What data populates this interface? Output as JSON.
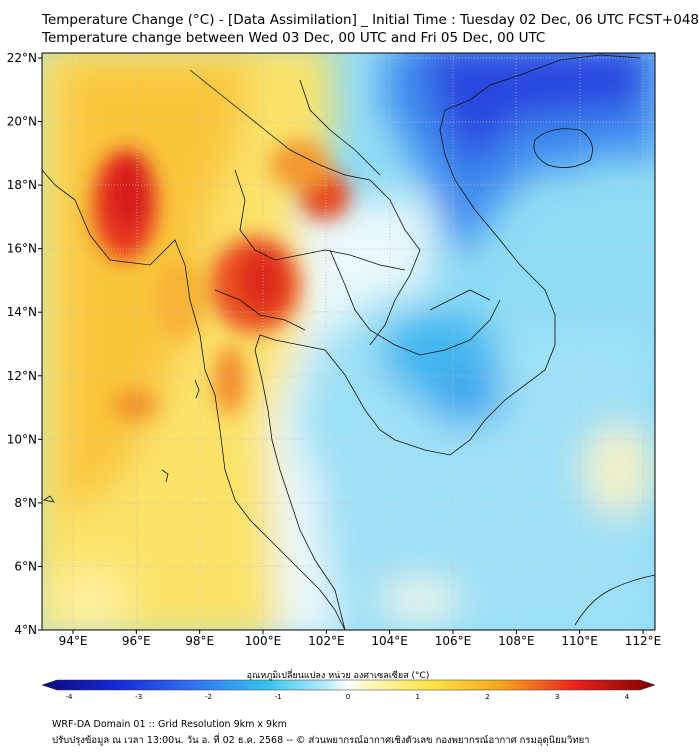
{
  "header": {
    "title_line1": "Temperature Change (°C) - [Data Assimilation] _ Initial Time : Tuesday 02 Dec, 06 UTC FCST+048",
    "title_line2": "Temperature change between Wed 03 Dec, 00 UTC and Fri 05 Dec, 00 UTC"
  },
  "map": {
    "lat_labels": [
      "22°N",
      "20°N",
      "18°N",
      "16°N",
      "14°N",
      "12°N",
      "10°N",
      "8°N",
      "6°N",
      "4°N"
    ],
    "lon_labels": [
      "94°E",
      "96°E",
      "98°E",
      "100°E",
      "102°E",
      "104°E",
      "106°E",
      "108°E",
      "110°E",
      "112°E"
    ],
    "warm_color": "#e8231d",
    "cool_color": "#1a2fd8",
    "neutral_color": "#ffffff"
  },
  "colorbar": {
    "label": "อุณหภูมิเปลี่ยนแปลง หน่วย องศาเซลเซียส (°C)",
    "ticks": [
      "-4",
      "-3",
      "-2",
      "-1",
      "0",
      "1",
      "2",
      "3",
      "4"
    ]
  },
  "footer": {
    "line1": "WRF-DA Domain 01 :: Grid Resolution 9km x 9km",
    "line2": "ปรับปรุงข้อมูล ณ เวลา 13:00น. วัน อ. ที่ 02 ธ.ค. 2568 -- © ส่วนพยากรณ์อากาศเชิงตัวเลข กองพยากรณ์อากาศ กรมอุตุนิยมวิทยา"
  }
}
